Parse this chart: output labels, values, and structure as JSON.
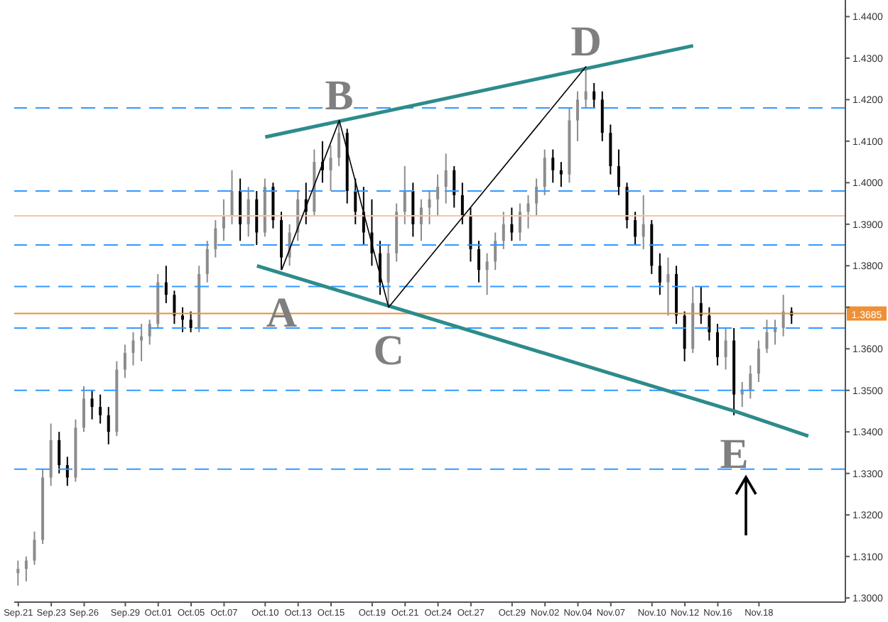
{
  "chart_data": {
    "type": "candlestick",
    "categories": [
      "Sep.21",
      null,
      null,
      null,
      "Sep.23",
      null,
      null,
      null,
      "Sep.26",
      null,
      null,
      null,
      null,
      "Sep.29",
      null,
      null,
      null,
      "Oct.01",
      null,
      null,
      null,
      "Oct.05",
      null,
      null,
      null,
      "Oct.07",
      null,
      null,
      null,
      null,
      "Oct.10",
      null,
      null,
      null,
      "Oct.13",
      null,
      null,
      null,
      "Oct.15",
      null,
      null,
      null,
      null,
      "Oct.19",
      null,
      null,
      null,
      "Oct.21",
      null,
      null,
      null,
      "Oct.24",
      null,
      null,
      null,
      "Oct.27",
      null,
      null,
      null,
      null,
      "Oct.29",
      null,
      null,
      null,
      "Nov.02",
      null,
      null,
      null,
      "Nov.04",
      null,
      null,
      null,
      "Nov.07",
      null,
      null,
      null,
      null,
      "Nov.10",
      null,
      null,
      null,
      "Nov.12",
      null,
      null,
      null,
      "Nov.16",
      null,
      null,
      null,
      null,
      "Nov.18",
      null,
      null,
      null,
      null,
      null,
      null,
      null,
      null,
      null,
      null
    ],
    "ohlc": [
      [
        1.306,
        1.309,
        1.303,
        1.307
      ],
      [
        1.307,
        1.31,
        1.304,
        1.309
      ],
      [
        1.309,
        1.316,
        1.308,
        1.314
      ],
      [
        1.314,
        1.331,
        1.313,
        1.329
      ],
      [
        1.329,
        1.342,
        1.327,
        1.338
      ],
      [
        1.338,
        1.34,
        1.33,
        1.332
      ],
      [
        1.332,
        1.334,
        1.327,
        1.329
      ],
      [
        1.329,
        1.343,
        1.328,
        1.341
      ],
      [
        1.341,
        1.351,
        1.34,
        1.348
      ],
      [
        1.348,
        1.35,
        1.343,
        1.346
      ],
      [
        1.346,
        1.349,
        1.342,
        1.344
      ],
      [
        1.344,
        1.346,
        1.337,
        1.34
      ],
      [
        1.34,
        1.357,
        1.339,
        1.355
      ],
      [
        1.355,
        1.361,
        1.353,
        1.359
      ],
      [
        1.359,
        1.364,
        1.356,
        1.362
      ],
      [
        1.362,
        1.366,
        1.357,
        1.363
      ],
      [
        1.363,
        1.367,
        1.361,
        1.366
      ],
      [
        1.366,
        1.378,
        1.365,
        1.376
      ],
      [
        1.376,
        1.38,
        1.371,
        1.373
      ],
      [
        1.373,
        1.374,
        1.366,
        1.368
      ],
      [
        1.368,
        1.37,
        1.364,
        1.367
      ],
      [
        1.367,
        1.369,
        1.364,
        1.365
      ],
      [
        1.365,
        1.38,
        1.364,
        1.378
      ],
      [
        1.378,
        1.386,
        1.376,
        1.384
      ],
      [
        1.384,
        1.391,
        1.382,
        1.389
      ],
      [
        1.389,
        1.396,
        1.386,
        1.392
      ],
      [
        1.392,
        1.403,
        1.39,
        1.398
      ],
      [
        1.398,
        1.401,
        1.386,
        1.39
      ],
      [
        1.39,
        1.399,
        1.387,
        1.396
      ],
      [
        1.396,
        1.398,
        1.385,
        1.388
      ],
      [
        1.388,
        1.401,
        1.387,
        1.399
      ],
      [
        1.399,
        1.4,
        1.389,
        1.391
      ],
      [
        1.391,
        1.393,
        1.379,
        1.382
      ],
      [
        1.382,
        1.39,
        1.38,
        1.388
      ],
      [
        1.388,
        1.398,
        1.386,
        1.396
      ],
      [
        1.396,
        1.4,
        1.39,
        1.393
      ],
      [
        1.393,
        1.408,
        1.392,
        1.405
      ],
      [
        1.405,
        1.41,
        1.4,
        1.403
      ],
      [
        1.403,
        1.409,
        1.398,
        1.406
      ],
      [
        1.406,
        1.415,
        1.404,
        1.412
      ],
      [
        1.412,
        1.413,
        1.395,
        1.398
      ],
      [
        1.398,
        1.401,
        1.39,
        1.393
      ],
      [
        1.393,
        1.399,
        1.385,
        1.388
      ],
      [
        1.388,
        1.396,
        1.38,
        1.383
      ],
      [
        1.383,
        1.386,
        1.373,
        1.376
      ],
      [
        1.376,
        1.385,
        1.37,
        1.383
      ],
      [
        1.383,
        1.395,
        1.381,
        1.393
      ],
      [
        1.393,
        1.404,
        1.39,
        1.398
      ],
      [
        1.398,
        1.4,
        1.387,
        1.39
      ],
      [
        1.39,
        1.396,
        1.386,
        1.394
      ],
      [
        1.394,
        1.398,
        1.39,
        1.396
      ],
      [
        1.396,
        1.402,
        1.392,
        1.399
      ],
      [
        1.399,
        1.407,
        1.395,
        1.403
      ],
      [
        1.403,
        1.404,
        1.394,
        1.397
      ],
      [
        1.397,
        1.4,
        1.39,
        1.392
      ],
      [
        1.392,
        1.394,
        1.381,
        1.384
      ],
      [
        1.384,
        1.386,
        1.376,
        1.379
      ],
      [
        1.379,
        1.383,
        1.373,
        1.381
      ],
      [
        1.381,
        1.388,
        1.379,
        1.386
      ],
      [
        1.386,
        1.393,
        1.384,
        1.39
      ],
      [
        1.39,
        1.394,
        1.386,
        1.388
      ],
      [
        1.388,
        1.395,
        1.386,
        1.393
      ],
      [
        1.393,
        1.397,
        1.389,
        1.395
      ],
      [
        1.395,
        1.401,
        1.392,
        1.399
      ],
      [
        1.399,
        1.408,
        1.397,
        1.406
      ],
      [
        1.406,
        1.408,
        1.4,
        1.403
      ],
      [
        1.403,
        1.405,
        1.399,
        1.402
      ],
      [
        1.402,
        1.418,
        1.4,
        1.415
      ],
      [
        1.415,
        1.422,
        1.41,
        1.42
      ],
      [
        1.42,
        1.428,
        1.418,
        1.422
      ],
      [
        1.422,
        1.424,
        1.418,
        1.42
      ],
      [
        1.42,
        1.422,
        1.41,
        1.412
      ],
      [
        1.412,
        1.414,
        1.402,
        1.404
      ],
      [
        1.404,
        1.408,
        1.397,
        1.399
      ],
      [
        1.399,
        1.4,
        1.389,
        1.391
      ],
      [
        1.391,
        1.393,
        1.385,
        1.387
      ],
      [
        1.387,
        1.397,
        1.384,
        1.39
      ],
      [
        1.39,
        1.391,
        1.378,
        1.38
      ],
      [
        1.38,
        1.383,
        1.373,
        1.376
      ],
      [
        1.376,
        1.382,
        1.368,
        1.378
      ],
      [
        1.378,
        1.38,
        1.366,
        1.368
      ],
      [
        1.368,
        1.369,
        1.357,
        1.36
      ],
      [
        1.36,
        1.375,
        1.359,
        1.371
      ],
      [
        1.371,
        1.375,
        1.366,
        1.368
      ],
      [
        1.368,
        1.37,
        1.362,
        1.364
      ],
      [
        1.364,
        1.366,
        1.356,
        1.358
      ],
      [
        1.358,
        1.365,
        1.355,
        1.362
      ],
      [
        1.362,
        1.365,
        1.344,
        1.349
      ],
      [
        1.349,
        1.352,
        1.346,
        1.35
      ],
      [
        1.35,
        1.356,
        1.348,
        1.354
      ],
      [
        1.354,
        1.362,
        1.352,
        1.36
      ],
      [
        1.36,
        1.367,
        1.359,
        1.364
      ],
      [
        1.364,
        1.367,
        1.361,
        1.365
      ],
      [
        1.365,
        1.373,
        1.363,
        1.369
      ],
      [
        1.369,
        1.37,
        1.366,
        1.368
      ],
      null,
      null,
      null,
      null,
      null,
      null
    ],
    "colors": [
      "#8c8c8c",
      "#8c8c8c",
      "#8c8c8c",
      "#8c8c8c",
      "#8c8c8c",
      "#000000",
      "#000000",
      "#8c8c8c",
      "#8c8c8c",
      "#000000",
      "#000000",
      "#000000",
      "#8c8c8c",
      "#8c8c8c",
      "#8c8c8c",
      "#8c8c8c",
      "#8c8c8c",
      "#8c8c8c",
      "#000000",
      "#000000",
      "#000000",
      "#000000",
      "#8c8c8c",
      "#8c8c8c",
      "#8c8c8c",
      "#8c8c8c",
      "#8c8c8c",
      "#000000",
      "#8c8c8c",
      "#000000",
      "#8c8c8c",
      "#000000",
      "#000000",
      "#8c8c8c",
      "#8c8c8c",
      "#000000",
      "#8c8c8c",
      "#000000",
      "#8c8c8c",
      "#8c8c8c",
      "#000000",
      "#000000",
      "#000000",
      "#000000",
      "#000000",
      "#8c8c8c",
      "#8c8c8c",
      "#8c8c8c",
      "#000000",
      "#8c8c8c",
      "#8c8c8c",
      "#8c8c8c",
      "#8c8c8c",
      "#000000",
      "#000000",
      "#000000",
      "#000000",
      "#8c8c8c",
      "#8c8c8c",
      "#8c8c8c",
      "#000000",
      "#8c8c8c",
      "#8c8c8c",
      "#8c8c8c",
      "#8c8c8c",
      "#000000",
      "#000000",
      "#8c8c8c",
      "#8c8c8c",
      "#8c8c8c",
      "#000000",
      "#000000",
      "#000000",
      "#000000",
      "#000000",
      "#000000",
      "#8c8c8c",
      "#000000",
      "#000000",
      "#8c8c8c",
      "#000000",
      "#000000",
      "#8c8c8c",
      "#000000",
      "#000000",
      "#000000",
      "#8c8c8c",
      "#000000",
      "#8c8c8c",
      "#8c8c8c",
      "#8c8c8c",
      "#8c8c8c",
      "#8c8c8c",
      "#8c8c8c",
      "#000000",
      null,
      null,
      null,
      null,
      null,
      null
    ],
    "series": [
      {
        "type": "line",
        "color": "#2e8b8b",
        "values": [
          null,
          null,
          null,
          null,
          null,
          null,
          null,
          null,
          null,
          null,
          null,
          null,
          null,
          null,
          null,
          null,
          null,
          null,
          null,
          null,
          null,
          null,
          null,
          null,
          null,
          null,
          null,
          null,
          null,
          null,
          1.411,
          null,
          null,
          null,
          null,
          null,
          null,
          null,
          null,
          null,
          null,
          null,
          null,
          null,
          null,
          null,
          null,
          null,
          null,
          null,
          null,
          null,
          null,
          null,
          null,
          null,
          null,
          null,
          null,
          null,
          null,
          null,
          null,
          null,
          null,
          null,
          null,
          null,
          null,
          null,
          null,
          null,
          null,
          null,
          null,
          null,
          null,
          null,
          null,
          null,
          null,
          null,
          1.433,
          null,
          null,
          null,
          null,
          null,
          null,
          null,
          null,
          null,
          null,
          null,
          null,
          null,
          null,
          null,
          null,
          null,
          null
        ]
      },
      {
        "type": "line",
        "color": "#2e8b8b",
        "values": [
          null,
          null,
          null,
          null,
          null,
          null,
          null,
          null,
          null,
          null,
          null,
          null,
          null,
          null,
          null,
          null,
          null,
          null,
          null,
          null,
          null,
          null,
          null,
          null,
          null,
          null,
          null,
          null,
          null,
          1.38,
          null,
          null,
          null,
          null,
          null,
          null,
          null,
          null,
          null,
          null,
          null,
          null,
          null,
          null,
          null,
          null,
          null,
          null,
          null,
          null,
          null,
          null,
          null,
          null,
          null,
          null,
          null,
          null,
          null,
          null,
          null,
          null,
          null,
          null,
          null,
          null,
          null,
          null,
          null,
          null,
          null,
          null,
          null,
          null,
          null,
          null,
          null,
          null,
          null,
          null,
          null,
          null,
          null,
          null,
          null,
          null,
          null,
          1.345,
          null,
          null,
          null,
          null,
          null,
          null,
          null,
          null,
          1.339,
          null,
          null,
          null,
          null
        ],
        "value_labels": [
          null,
          null,
          null,
          null,
          null,
          null,
          null,
          null,
          null,
          null,
          null,
          null,
          null,
          null,
          null,
          null,
          null,
          null,
          null,
          null,
          null,
          null,
          null,
          null,
          null,
          null,
          null,
          null,
          null,
          null,
          null,
          null,
          null,
          null,
          null,
          null,
          null,
          null,
          null,
          null,
          null,
          null,
          null,
          null,
          null,
          null,
          null,
          null,
          null,
          null,
          null,
          null,
          null,
          null,
          null,
          null,
          null,
          null,
          null,
          null,
          null,
          null,
          null,
          null,
          null,
          null,
          null,
          null,
          null,
          null,
          null,
          null,
          null,
          null,
          null,
          null,
          null,
          null,
          null,
          null,
          null,
          null,
          null,
          null,
          null,
          null,
          null,
          "E",
          null,
          null,
          null,
          null,
          null,
          null,
          null,
          null,
          null,
          null,
          null,
          null,
          null
        ]
      },
      {
        "type": "line",
        "color": "#000000",
        "values": [
          null,
          null,
          null,
          null,
          null,
          null,
          null,
          null,
          null,
          null,
          null,
          null,
          null,
          null,
          null,
          null,
          null,
          null,
          null,
          null,
          null,
          null,
          null,
          null,
          null,
          null,
          null,
          null,
          null,
          null,
          null,
          null,
          1.379,
          null,
          null,
          null,
          null,
          null,
          null,
          1.415,
          null,
          null,
          null,
          null,
          null,
          1.37,
          null,
          null,
          null,
          null,
          null,
          null,
          null,
          null,
          null,
          null,
          null,
          null,
          null,
          null,
          null,
          null,
          null,
          null,
          null,
          null,
          null,
          null,
          null,
          1.428,
          null,
          null,
          null,
          null,
          null,
          null,
          null,
          null,
          null,
          null,
          null,
          null,
          null,
          null,
          null,
          null,
          null,
          null,
          null,
          null,
          null,
          null,
          null,
          null,
          null,
          null,
          null,
          null,
          null,
          null,
          null
        ],
        "value_labels": [
          null,
          null,
          null,
          null,
          null,
          null,
          null,
          null,
          null,
          null,
          null,
          null,
          null,
          null,
          null,
          null,
          null,
          null,
          null,
          null,
          null,
          null,
          null,
          null,
          null,
          null,
          null,
          null,
          null,
          null,
          null,
          null,
          "A",
          null,
          null,
          null,
          null,
          null,
          null,
          "B",
          null,
          null,
          null,
          null,
          null,
          "C",
          null,
          null,
          null,
          null,
          null,
          null,
          null,
          null,
          null,
          null,
          null,
          null,
          null,
          null,
          null,
          null,
          null,
          null,
          null,
          null,
          null,
          null,
          null,
          "D",
          null,
          null,
          null,
          null,
          null,
          null,
          null,
          null,
          null,
          null,
          null,
          null,
          null,
          null,
          null,
          null,
          null,
          null,
          null,
          null,
          null,
          null,
          null,
          null,
          null,
          null,
          null,
          null,
          null,
          null,
          null
        ]
      }
    ],
    "ylim": [
      1.299,
      1.444
    ],
    "yticks": [
      {
        "value": 1.3,
        "label": "1.3000"
      },
      {
        "value": 1.31,
        "label": "1.3100"
      },
      {
        "value": 1.32,
        "label": "1.3200"
      },
      {
        "value": 1.33,
        "label": "1.3300"
      },
      {
        "value": 1.34,
        "label": "1.3400"
      },
      {
        "value": 1.35,
        "label": "1.3500"
      },
      {
        "value": 1.36,
        "label": "1.3600"
      },
      {
        "value": 1.37,
        "label": null
      },
      {
        "value": 1.38,
        "label": "1.3800"
      },
      {
        "value": 1.39,
        "label": "1.3900"
      },
      {
        "value": 1.4,
        "label": "1.4000"
      },
      {
        "value": 1.41,
        "label": "1.4100"
      },
      {
        "value": 1.42,
        "label": "1.4200"
      },
      {
        "value": 1.43,
        "label": "1.4300"
      },
      {
        "value": 1.44,
        "label": "1.4400"
      }
    ],
    "ref_lines": [
      {
        "axis": "y",
        "value": 1.418,
        "color": "#3399ff",
        "line_style": "dashed"
      },
      {
        "axis": "y",
        "value": 1.398,
        "color": "#3399ff",
        "line_style": "dashed"
      },
      {
        "axis": "y",
        "value": 1.392,
        "color": "#f4c4a4",
        "line_style": "solid"
      },
      {
        "axis": "y",
        "value": 1.385,
        "color": "#3399ff",
        "line_style": "dashed"
      },
      {
        "axis": "y",
        "value": 1.375,
        "color": "#3399ff",
        "line_style": "dashed"
      },
      {
        "axis": "y",
        "value": 1.3685,
        "color": "#ee9035",
        "line_style": "solid",
        "label": "1.3685"
      },
      {
        "axis": "y",
        "value": 1.365,
        "color": "#3399ff",
        "line_style": "dashed"
      },
      {
        "axis": "y",
        "value": 1.35,
        "color": "#3399ff",
        "line_style": "dashed"
      },
      {
        "axis": "y",
        "value": 1.331,
        "color": "#3399ff",
        "line_style": "dashed"
      }
    ]
  }
}
